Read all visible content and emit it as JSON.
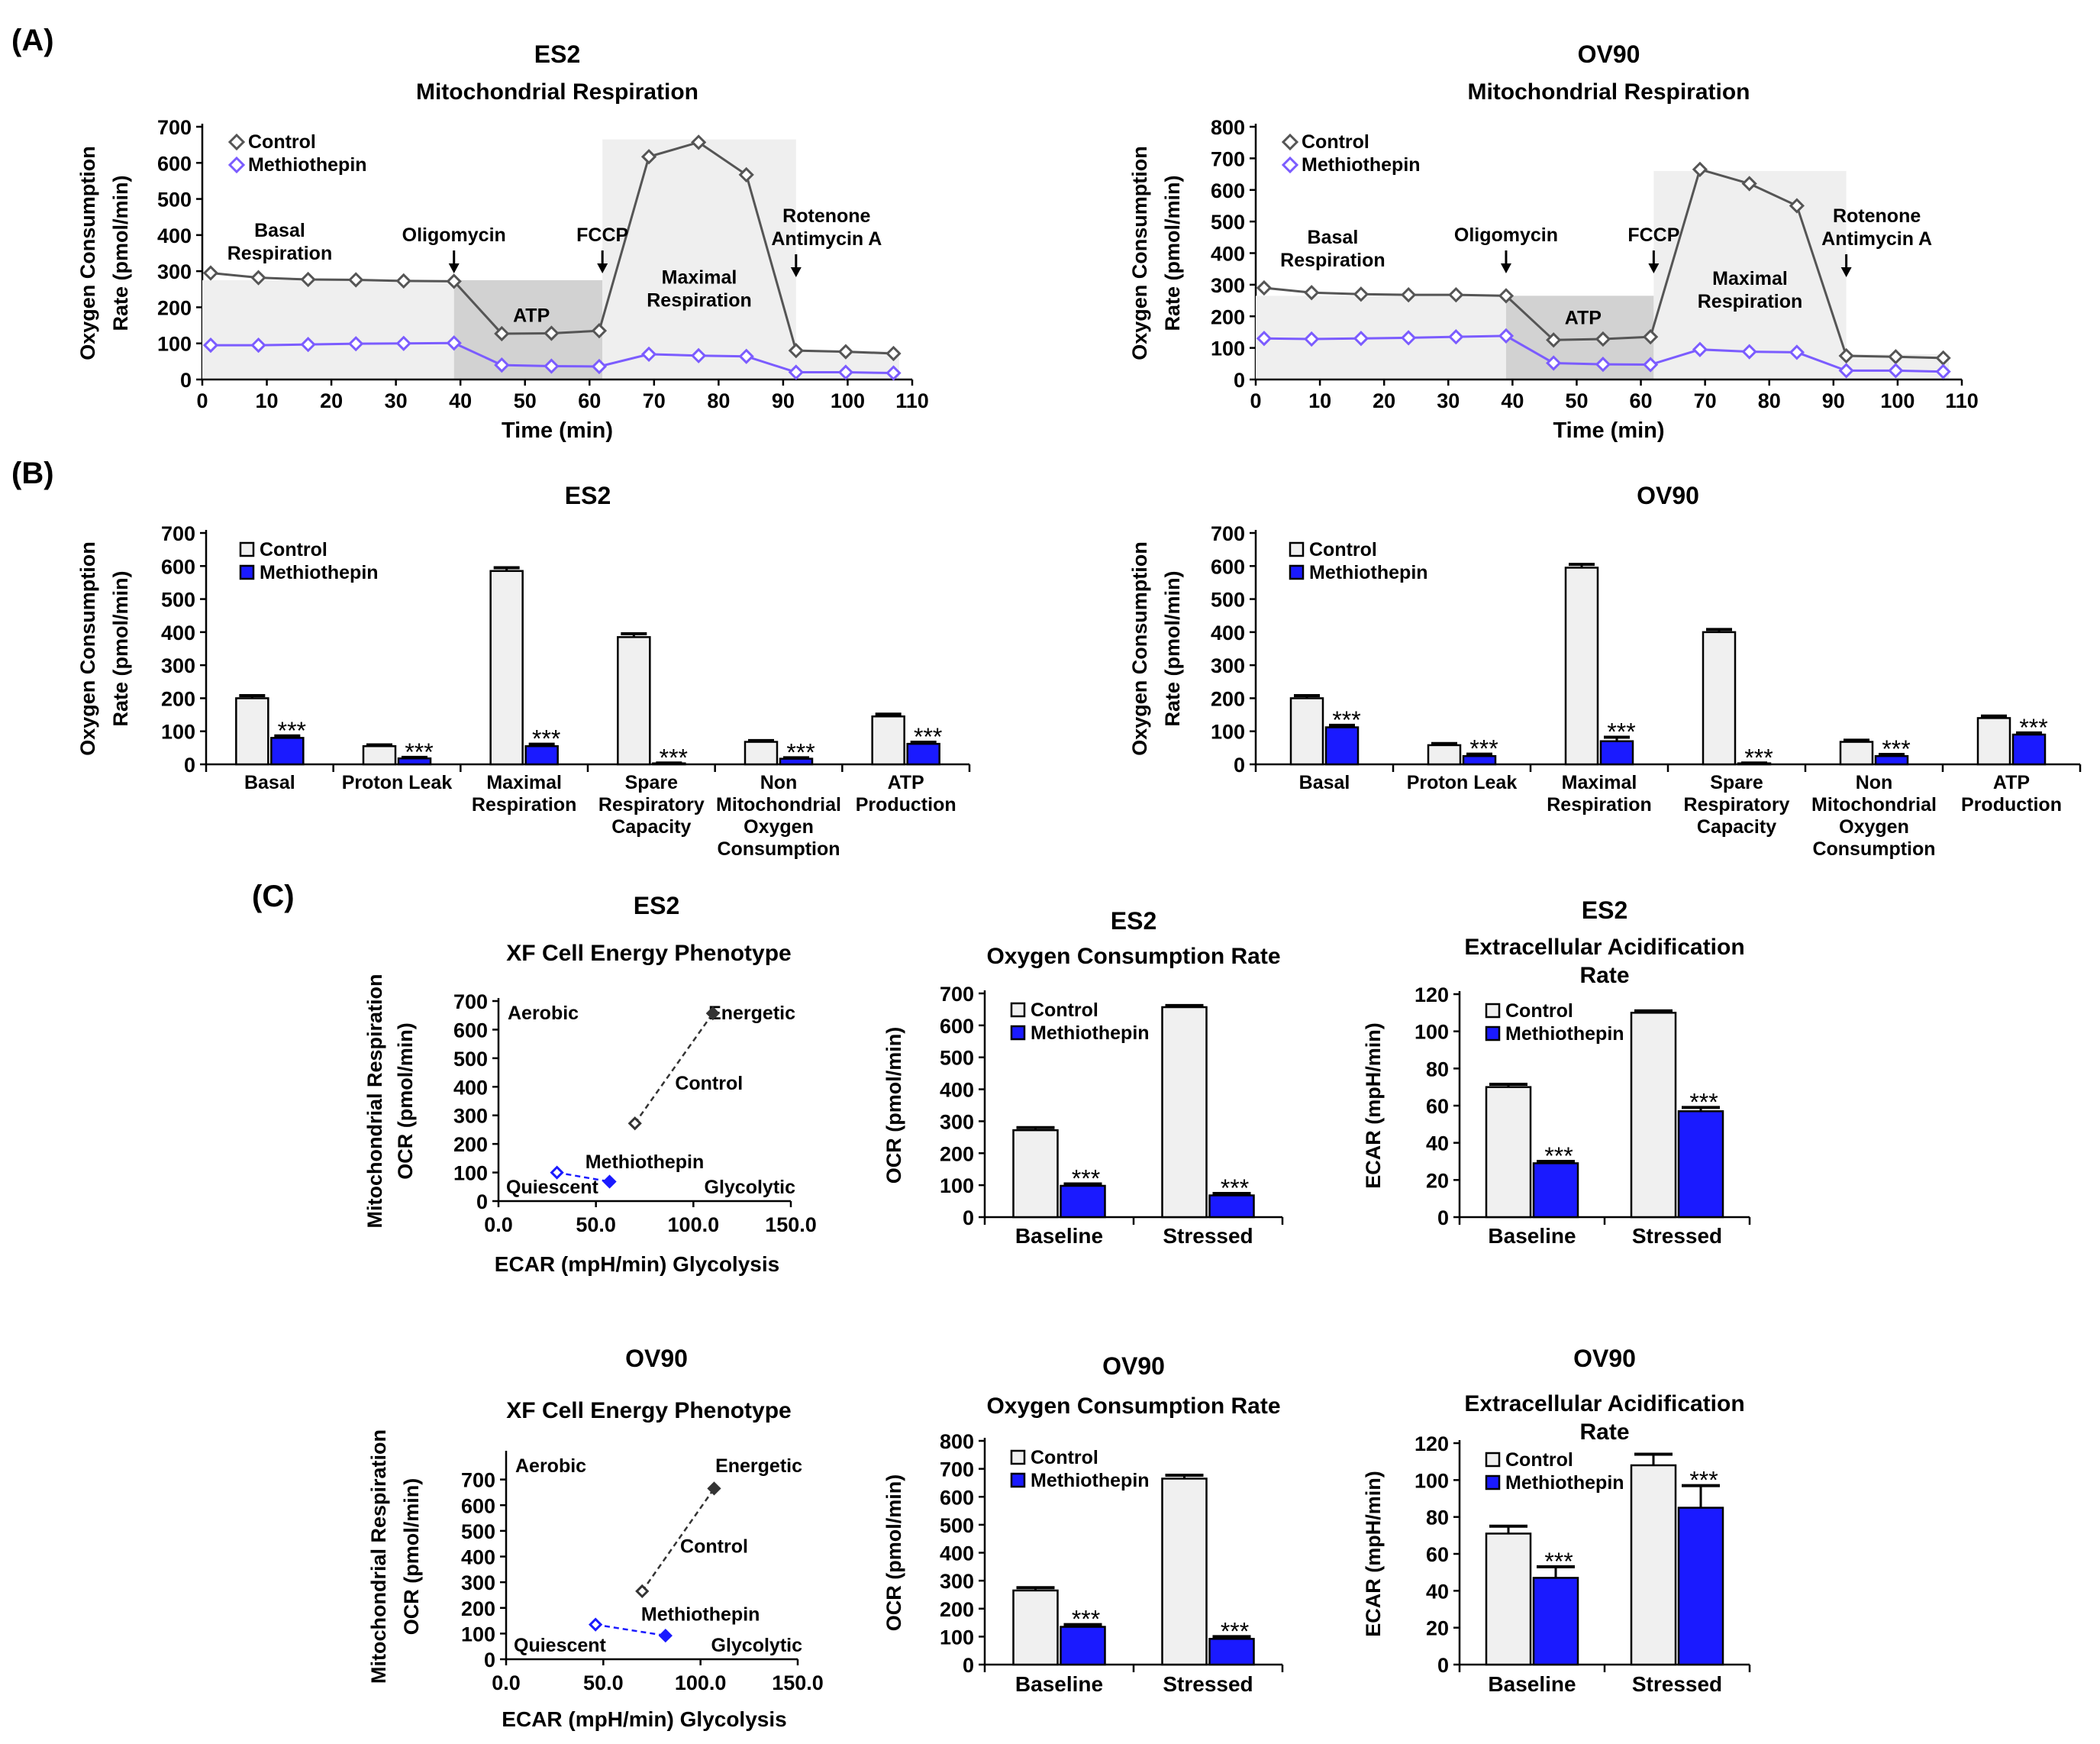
{
  "panels": {
    "a": "(A)",
    "b": "(B)",
    "c": "(C)"
  },
  "chart_data": [
    {
      "id": "a1",
      "type": "line",
      "title": "ES2",
      "subtitle": "Mitochondrial Respiration",
      "xlabel": "Time (min)",
      "ylabel": [
        "Oxygen Consumption",
        "Rate (pmol/min)"
      ],
      "xlim": [
        0,
        110
      ],
      "ylim": [
        0,
        700
      ],
      "xticks": [
        0,
        10,
        20,
        30,
        40,
        50,
        60,
        70,
        80,
        90,
        100,
        110
      ],
      "yticks": [
        0,
        100,
        200,
        300,
        400,
        500,
        600,
        700
      ],
      "x": [
        1.3,
        8.7,
        16.4,
        23.8,
        31.2,
        39,
        46.4,
        54.1,
        61.5,
        69.2,
        76.9,
        84.3,
        92,
        99.7,
        107.1
      ],
      "series": [
        {
          "name": "Control",
          "color": "#555555",
          "values": [
            295,
            282,
            277,
            276,
            273,
            272,
            127,
            128,
            135,
            617,
            657,
            567,
            80,
            77,
            72
          ]
        },
        {
          "name": "Methiothepin",
          "color": "#7b5cff",
          "values": [
            95,
            95,
            97,
            99,
            100,
            101,
            40,
            37,
            36,
            70,
            66,
            64,
            20,
            20,
            18
          ]
        }
      ],
      "regions": [
        {
          "x": [
            0,
            39
          ],
          "ymax": 275,
          "shade": "light"
        },
        {
          "x": [
            39,
            62
          ],
          "ymax": 275,
          "shade": "dark"
        },
        {
          "x": [
            62,
            92
          ],
          "ymax": 665,
          "shade": "light"
        },
        {
          "x": [
            92,
            108
          ],
          "ymax": 80,
          "shade": "light"
        }
      ],
      "annotations": [
        {
          "lines": [
            "Basal",
            "Respiration"
          ],
          "x": 12,
          "y": 395
        },
        {
          "lines": [
            "ATP"
          ],
          "x": 51,
          "y": 160
        },
        {
          "lines": [
            "Maximal",
            "Respiration"
          ],
          "x": 77,
          "y": 265
        }
      ],
      "injections": [
        {
          "lines": [
            "Oligomycin"
          ],
          "x": 39
        },
        {
          "lines": [
            "FCCP"
          ],
          "x": 62
        },
        {
          "lines": [
            "Rotenone",
            "Antimycin A"
          ],
          "x": 92
        }
      ]
    },
    {
      "id": "a2",
      "type": "line",
      "title": "OV90",
      "subtitle": "Mitochondrial Respiration",
      "xlabel": "Time (min)",
      "ylabel": [
        "Oxygen Consumption",
        "Rate (pmol/min)"
      ],
      "xlim": [
        0,
        110
      ],
      "ylim": [
        0,
        800
      ],
      "xticks": [
        0,
        10,
        20,
        30,
        40,
        50,
        60,
        70,
        80,
        90,
        100,
        110
      ],
      "yticks": [
        0,
        100,
        200,
        300,
        400,
        500,
        600,
        700,
        800
      ],
      "x": [
        1.3,
        8.7,
        16.4,
        23.8,
        31.2,
        39,
        46.4,
        54.1,
        61.5,
        69.2,
        76.9,
        84.3,
        92,
        99.7,
        107.1
      ],
      "series": [
        {
          "name": "Control",
          "color": "#555555",
          "values": [
            290,
            275,
            270,
            268,
            268,
            265,
            125,
            128,
            135,
            665,
            620,
            550,
            75,
            72,
            68
          ]
        },
        {
          "name": "Methiothepin",
          "color": "#7b5cff",
          "values": [
            130,
            128,
            130,
            132,
            135,
            138,
            52,
            48,
            47,
            95,
            88,
            86,
            28,
            28,
            25
          ]
        }
      ],
      "regions": [
        {
          "x": [
            0,
            39
          ],
          "ymax": 265,
          "shade": "light"
        },
        {
          "x": [
            39,
            62
          ],
          "ymax": 265,
          "shade": "dark"
        },
        {
          "x": [
            62,
            92
          ],
          "ymax": 660,
          "shade": "light"
        },
        {
          "x": [
            92,
            108
          ],
          "ymax": 80,
          "shade": "light"
        }
      ],
      "annotations": [
        {
          "lines": [
            "Basal",
            "Respiration"
          ],
          "x": 12,
          "y": 430
        },
        {
          "lines": [
            "ATP"
          ],
          "x": 51,
          "y": 175
        },
        {
          "lines": [
            "Maximal",
            "Respiration"
          ],
          "x": 77,
          "y": 300
        }
      ],
      "injections": [
        {
          "lines": [
            "Oligomycin"
          ],
          "x": 39
        },
        {
          "lines": [
            "FCCP"
          ],
          "x": 62
        },
        {
          "lines": [
            "Rotenone",
            "Antimycin A"
          ],
          "x": 92
        }
      ]
    },
    {
      "id": "b1",
      "type": "bar",
      "title": "ES2",
      "ylabel": [
        "Oxygen Consumption",
        "Rate (pmol/min)"
      ],
      "ylim": [
        0,
        700
      ],
      "yticks": [
        0,
        100,
        200,
        300,
        400,
        500,
        600,
        700
      ],
      "categories": [
        [
          "Basal"
        ],
        [
          "Proton Leak"
        ],
        [
          "Maximal",
          "Respiration"
        ],
        [
          "Spare",
          "Respiratory",
          "Capacity"
        ],
        [
          "Non",
          "Mitochondrial",
          "Oxygen",
          "Consumption"
        ],
        [
          "ATP",
          "Production"
        ]
      ],
      "series": [
        {
          "name": "Control",
          "color": "#f0f0f0",
          "values": [
            200,
            55,
            585,
            385,
            68,
            145
          ],
          "errors": [
            8,
            4,
            10,
            10,
            4,
            7
          ]
        },
        {
          "name": "Methiothepin",
          "color": "#1a1aff",
          "values": [
            80,
            18,
            55,
            3,
            17,
            62
          ],
          "errors": [
            6,
            3,
            6,
            1,
            3,
            5
          ]
        }
      ],
      "significance": [
        "***",
        "***",
        "***",
        "***",
        "***",
        "***"
      ]
    },
    {
      "id": "b2",
      "type": "bar",
      "title": "OV90",
      "ylabel": [
        "Oxygen Consumption",
        "Rate (pmol/min)"
      ],
      "ylim": [
        0,
        700
      ],
      "yticks": [
        0,
        100,
        200,
        300,
        400,
        500,
        600,
        700
      ],
      "categories": [
        [
          "Basal"
        ],
        [
          "Proton Leak"
        ],
        [
          "Maximal",
          "Respiration"
        ],
        [
          "Spare",
          "Respiratory",
          "Capacity"
        ],
        [
          "Non",
          "Mitochondrial",
          "Oxygen",
          "Consumption"
        ],
        [
          "ATP",
          "Production"
        ]
      ],
      "series": [
        {
          "name": "Control",
          "color": "#f0f0f0",
          "values": [
            200,
            58,
            595,
            400,
            68,
            140
          ],
          "errors": [
            8,
            5,
            10,
            8,
            5,
            6
          ]
        },
        {
          "name": "Methiothepin",
          "color": "#1a1aff",
          "values": [
            112,
            25,
            70,
            3,
            25,
            90
          ],
          "errors": [
            6,
            6,
            12,
            1,
            5,
            5
          ]
        }
      ],
      "significance": [
        "***",
        "***",
        "***",
        "***",
        "***",
        "***"
      ]
    },
    {
      "id": "c1",
      "type": "scatter",
      "title": "ES2",
      "subtitle": "XF Cell Energy Phenotype",
      "xlabel": "ECAR (mpH/min) Glycolysis",
      "ylabel": [
        "Mitochondrial Respiration",
        "OCR (pmol/min)"
      ],
      "xlim": [
        0,
        150
      ],
      "ylim": [
        0,
        700
      ],
      "xticks": [
        0,
        50,
        100,
        150
      ],
      "xticklabels": [
        "0.0",
        "50.0",
        "100.0",
        "150.0"
      ],
      "yticks": [
        0,
        100,
        200,
        300,
        400,
        500,
        600,
        700
      ],
      "quadrants": [
        "Aerobic",
        "Energetic",
        "Quiescent",
        "Glycolytic"
      ],
      "series": [
        {
          "name": "Control",
          "color": "#333333",
          "baseline": [
            70,
            272
          ],
          "stressed": [
            110,
            657
          ],
          "label_at": [
            108,
            390
          ]
        },
        {
          "name": "Methiothepin",
          "color": "#1a1aff",
          "baseline": [
            30,
            100
          ],
          "stressed": [
            57,
            68
          ],
          "label_at": [
            75,
            115
          ]
        }
      ]
    },
    {
      "id": "c2",
      "type": "bar",
      "title": "ES2",
      "subtitle": "Oxygen Consumption Rate",
      "ylabel": [
        "OCR (pmol/min)"
      ],
      "ylim": [
        0,
        700
      ],
      "yticks": [
        0,
        100,
        200,
        300,
        400,
        500,
        600,
        700
      ],
      "categories": [
        [
          "Baseline"
        ],
        [
          "Stressed"
        ]
      ],
      "series": [
        {
          "name": "Control",
          "color": "#f0f0f0",
          "values": [
            272,
            657
          ],
          "errors": [
            8,
            5
          ]
        },
        {
          "name": "Methiothepin",
          "color": "#1a1aff",
          "values": [
            98,
            68
          ],
          "errors": [
            6,
            6
          ]
        }
      ],
      "significance": [
        "***",
        "***"
      ]
    },
    {
      "id": "c3",
      "type": "bar",
      "title": "ES2",
      "subtitle": "Extracellular Acidification",
      "subtitle2": "Rate",
      "ylabel": [
        "ECAR (mpH/min)"
      ],
      "ylim": [
        0,
        120
      ],
      "yticks": [
        0,
        20,
        40,
        60,
        80,
        100,
        120
      ],
      "categories": [
        [
          "Baseline"
        ],
        [
          "Stressed"
        ]
      ],
      "series": [
        {
          "name": "Control",
          "color": "#f0f0f0",
          "values": [
            70,
            110
          ],
          "errors": [
            1.5,
            1
          ]
        },
        {
          "name": "Methiothepin",
          "color": "#1a1aff",
          "values": [
            29,
            57
          ],
          "errors": [
            1,
            2
          ]
        }
      ],
      "significance": [
        "***",
        "***"
      ]
    },
    {
      "id": "c4",
      "type": "scatter",
      "title": "OV90",
      "subtitle": "XF Cell Energy Phenotype",
      "xlabel": "ECAR (mpH/min) Glycolysis",
      "ylabel": [
        "Mitochondrial Respiration",
        "OCR (pmol/min)"
      ],
      "xlim": [
        0,
        150
      ],
      "ylim": [
        0,
        800
      ],
      "xticks": [
        0,
        50,
        100,
        150
      ],
      "xticklabels": [
        "0.0",
        "50.0",
        "100.0",
        "150.0"
      ],
      "yticks": [
        0,
        100,
        200,
        300,
        400,
        500,
        600,
        700
      ],
      "quadrants": [
        "Aerobic",
        "Energetic",
        "Quiescent",
        "Glycolytic"
      ],
      "series": [
        {
          "name": "Control",
          "color": "#333333",
          "baseline": [
            70,
            265
          ],
          "stressed": [
            107,
            665
          ],
          "label_at": [
            107,
            415
          ]
        },
        {
          "name": "Methiothepin",
          "color": "#1a1aff",
          "baseline": [
            46,
            135
          ],
          "stressed": [
            82,
            92
          ],
          "label_at": [
            100,
            150
          ]
        }
      ]
    },
    {
      "id": "c5",
      "type": "bar",
      "title": "OV90",
      "subtitle": "Oxygen Consumption Rate",
      "ylabel": [
        "OCR (pmol/min)"
      ],
      "ylim": [
        0,
        800
      ],
      "yticks": [
        0,
        100,
        200,
        300,
        400,
        500,
        600,
        700,
        800
      ],
      "categories": [
        [
          "Baseline"
        ],
        [
          "Stressed"
        ]
      ],
      "series": [
        {
          "name": "Control",
          "color": "#f0f0f0",
          "values": [
            265,
            665
          ],
          "errors": [
            10,
            12
          ]
        },
        {
          "name": "Methiothepin",
          "color": "#1a1aff",
          "values": [
            135,
            92
          ],
          "errors": [
            8,
            8
          ]
        }
      ],
      "significance": [
        "***",
        "***"
      ]
    },
    {
      "id": "c6",
      "type": "bar",
      "title": "OV90",
      "subtitle": "Extracellular Acidification",
      "subtitle2": "Rate",
      "ylabel": [
        "ECAR (mpH/min)"
      ],
      "ylim": [
        0,
        120
      ],
      "yticks": [
        0,
        20,
        40,
        60,
        80,
        100,
        120
      ],
      "categories": [
        [
          "Baseline"
        ],
        [
          "Stressed"
        ]
      ],
      "series": [
        {
          "name": "Control",
          "color": "#f0f0f0",
          "values": [
            71,
            108
          ],
          "errors": [
            4,
            6
          ]
        },
        {
          "name": "Methiothepin",
          "color": "#1a1aff",
          "values": [
            47,
            85
          ],
          "errors": [
            6,
            12
          ]
        }
      ],
      "significance": [
        "***",
        "***"
      ]
    }
  ]
}
